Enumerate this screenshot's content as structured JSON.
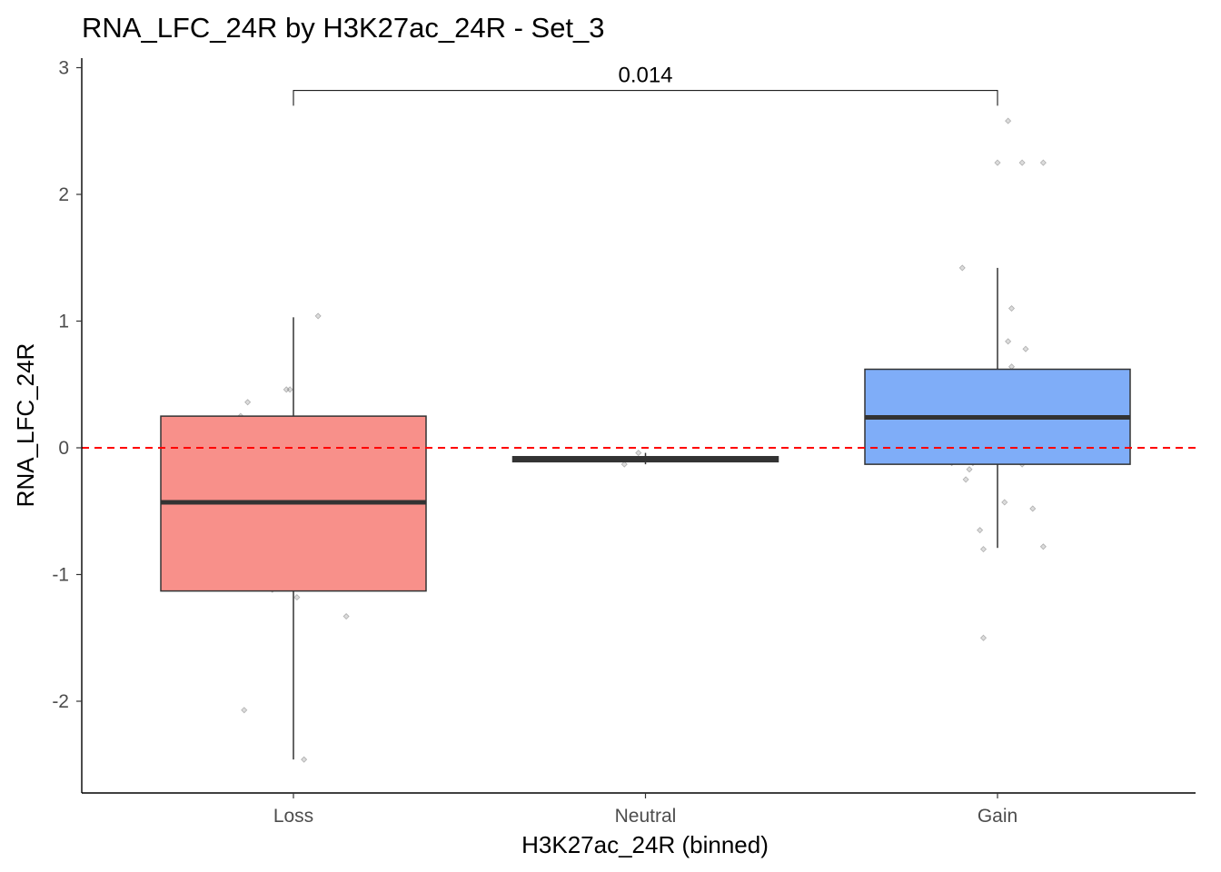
{
  "chart_data": {
    "type": "box",
    "title": "RNA_LFC_24R by H3K27ac_24R - Set_3",
    "xlabel": "H3K27ac_24R (binned)",
    "ylabel": "RNA_LFC_24R",
    "ylim": [
      -2.7,
      3.05
    ],
    "yticks": [
      -2,
      -1,
      0,
      1,
      2,
      3
    ],
    "yticklabels": [
      "-2",
      "-1",
      "0",
      "1",
      "2",
      "3"
    ],
    "categories": [
      "Loss",
      "Neutral",
      "Gain"
    ],
    "reference_line": {
      "y": 0,
      "style": "dashed",
      "color": "#ff0000"
    },
    "comparison": {
      "from": "Loss",
      "to": "Gain",
      "label": "0.014",
      "y": 2.82,
      "tip_bottom": 2.7
    },
    "boxes": [
      {
        "category": "Loss",
        "color": "#f8908a",
        "whisker_low": -2.46,
        "q1": -1.13,
        "median": -0.43,
        "q3": 0.25,
        "whisker_high": 1.03
      },
      {
        "category": "Neutral",
        "color": "#e8e8e8",
        "whisker_low": -0.13,
        "q1": -0.11,
        "median": -0.09,
        "q3": -0.07,
        "whisker_high": -0.04
      },
      {
        "category": "Gain",
        "color": "#7fadf8",
        "whisker_low": -0.79,
        "q1": -0.13,
        "median": 0.24,
        "q3": 0.62,
        "whisker_high": 1.42
      }
    ],
    "points": [
      {
        "category": "Loss",
        "values": [
          1.04,
          0.46,
          0.46,
          0.36,
          0.25,
          0.1,
          0.0,
          -0.12,
          -0.43,
          -0.44,
          -0.51,
          -0.56,
          -1.12,
          -1.18,
          -1.33,
          -2.07,
          -2.46
        ],
        "offsets": [
          0.07,
          -0.01,
          -0.02,
          -0.13,
          -0.15,
          0.14,
          -0.02,
          0.01,
          -0.12,
          -0.01,
          -0.07,
          -0.13,
          -0.06,
          0.01,
          0.15,
          -0.14,
          0.03
        ]
      },
      {
        "category": "Neutral",
        "values": [
          -0.04,
          -0.13
        ],
        "offsets": [
          -0.02,
          -0.06
        ]
      },
      {
        "category": "Gain",
        "values": [
          2.58,
          2.25,
          2.25,
          2.25,
          1.42,
          1.1,
          0.84,
          0.78,
          0.64,
          0.56,
          0.55,
          0.51,
          0.5,
          0.44,
          0.4,
          0.34,
          0.24,
          0.2,
          0.2,
          0.04,
          -0.01,
          -0.12,
          -0.12,
          -0.13,
          -0.17,
          -0.25,
          -0.43,
          -0.48,
          -0.65,
          -0.78,
          -0.8,
          -1.5
        ],
        "offsets": [
          0.03,
          0.0,
          0.07,
          0.13,
          -0.1,
          0.04,
          0.03,
          0.08,
          0.04,
          0.09,
          0.11,
          -0.05,
          0.14,
          -0.08,
          0.01,
          0.04,
          0.1,
          -0.06,
          0.03,
          -0.03,
          0.07,
          -0.13,
          -0.07,
          0.07,
          -0.08,
          -0.09,
          0.02,
          0.1,
          -0.05,
          0.13,
          -0.04,
          -0.04
        ]
      }
    ]
  }
}
